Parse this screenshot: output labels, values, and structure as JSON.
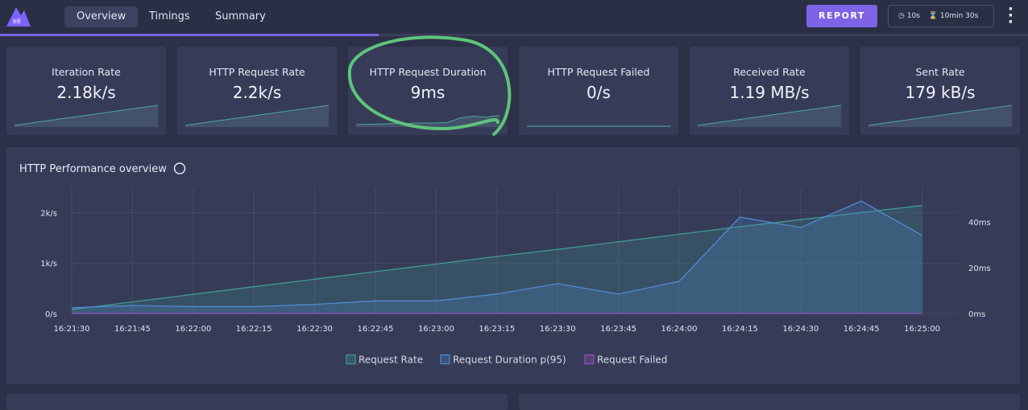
{
  "nav": {
    "logo": "k6",
    "tabs": [
      "Overview",
      "Timings",
      "Summary"
    ],
    "report": "REPORT",
    "interval": "10s",
    "duration": "10min 30s"
  },
  "cards": [
    {
      "title": "Iteration Rate",
      "value": "2.18k/s",
      "spark": [
        1,
        3,
        5,
        7,
        9,
        11,
        13,
        15,
        17,
        19,
        21,
        23
      ]
    },
    {
      "title": "HTTP Request Rate",
      "value": "2.2k/s",
      "spark": [
        1,
        3,
        5,
        7,
        9,
        11,
        13,
        15,
        17,
        19,
        21,
        23
      ]
    },
    {
      "title": "HTTP Request Duration",
      "value": "9ms",
      "spark": [
        2,
        2,
        2.5,
        3,
        3,
        3.5,
        3.5,
        4,
        9,
        11,
        10,
        12
      ]
    },
    {
      "title": "HTTP Request Failed",
      "value": "0/s",
      "spark": [
        0,
        0,
        0,
        0,
        0,
        0,
        0,
        0,
        0,
        0,
        0,
        0
      ]
    },
    {
      "title": "Received Rate",
      "value": "1.19 MB/s",
      "spark": [
        1,
        3,
        5,
        7,
        9,
        11,
        13,
        15,
        17,
        19,
        21,
        23
      ]
    },
    {
      "title": "Sent Rate",
      "value": "179 kB/s",
      "spark": [
        1,
        3,
        5,
        7,
        9,
        11,
        13,
        15,
        17,
        19,
        21,
        23
      ]
    }
  ],
  "chart_data": {
    "type": "line",
    "title": "HTTP Performance overview",
    "categories": [
      "16:21:30",
      "16:21:45",
      "16:22:00",
      "16:22:15",
      "16:22:30",
      "16:22:45",
      "16:23:00",
      "16:23:15",
      "16:23:30",
      "16:23:45",
      "16:24:00",
      "16:24:15",
      "16:24:30",
      "16:24:45",
      "16:25:00"
    ],
    "series": [
      {
        "name": "Request Rate",
        "color": "#3e9c8e",
        "values": [
          80,
          230,
          380,
          530,
          680,
          830,
          980,
          1130,
          1270,
          1420,
          1570,
          1720,
          1860,
          2000,
          2140
        ]
      },
      {
        "name": "Request Duration p(95)",
        "color": "#4f8bd6",
        "axis": "y2",
        "values": [
          2.5,
          3.5,
          3,
          3,
          4,
          5.5,
          5.5,
          8.5,
          13,
          8.5,
          14,
          42,
          37.5,
          49,
          34
        ]
      },
      {
        "name": "Request Failed",
        "color": "#9a4fc0",
        "values": [
          0,
          0,
          0,
          0,
          0,
          0,
          0,
          0,
          0,
          0,
          0,
          0,
          0,
          0,
          0
        ]
      }
    ],
    "ylim": [
      0,
      2500
    ],
    "yticks": [
      {
        "value": 0,
        "label": "0/s"
      },
      {
        "value": 1000,
        "label": "1k/s"
      },
      {
        "value": 2000,
        "label": "2k/s"
      }
    ],
    "y2lim": [
      0,
      55
    ],
    "y2ticks": [
      {
        "value": 0,
        "label": "0ms"
      },
      {
        "value": 20,
        "label": "20ms"
      },
      {
        "value": 40,
        "label": "40ms"
      }
    ],
    "grid": true,
    "legend": "bottom"
  }
}
